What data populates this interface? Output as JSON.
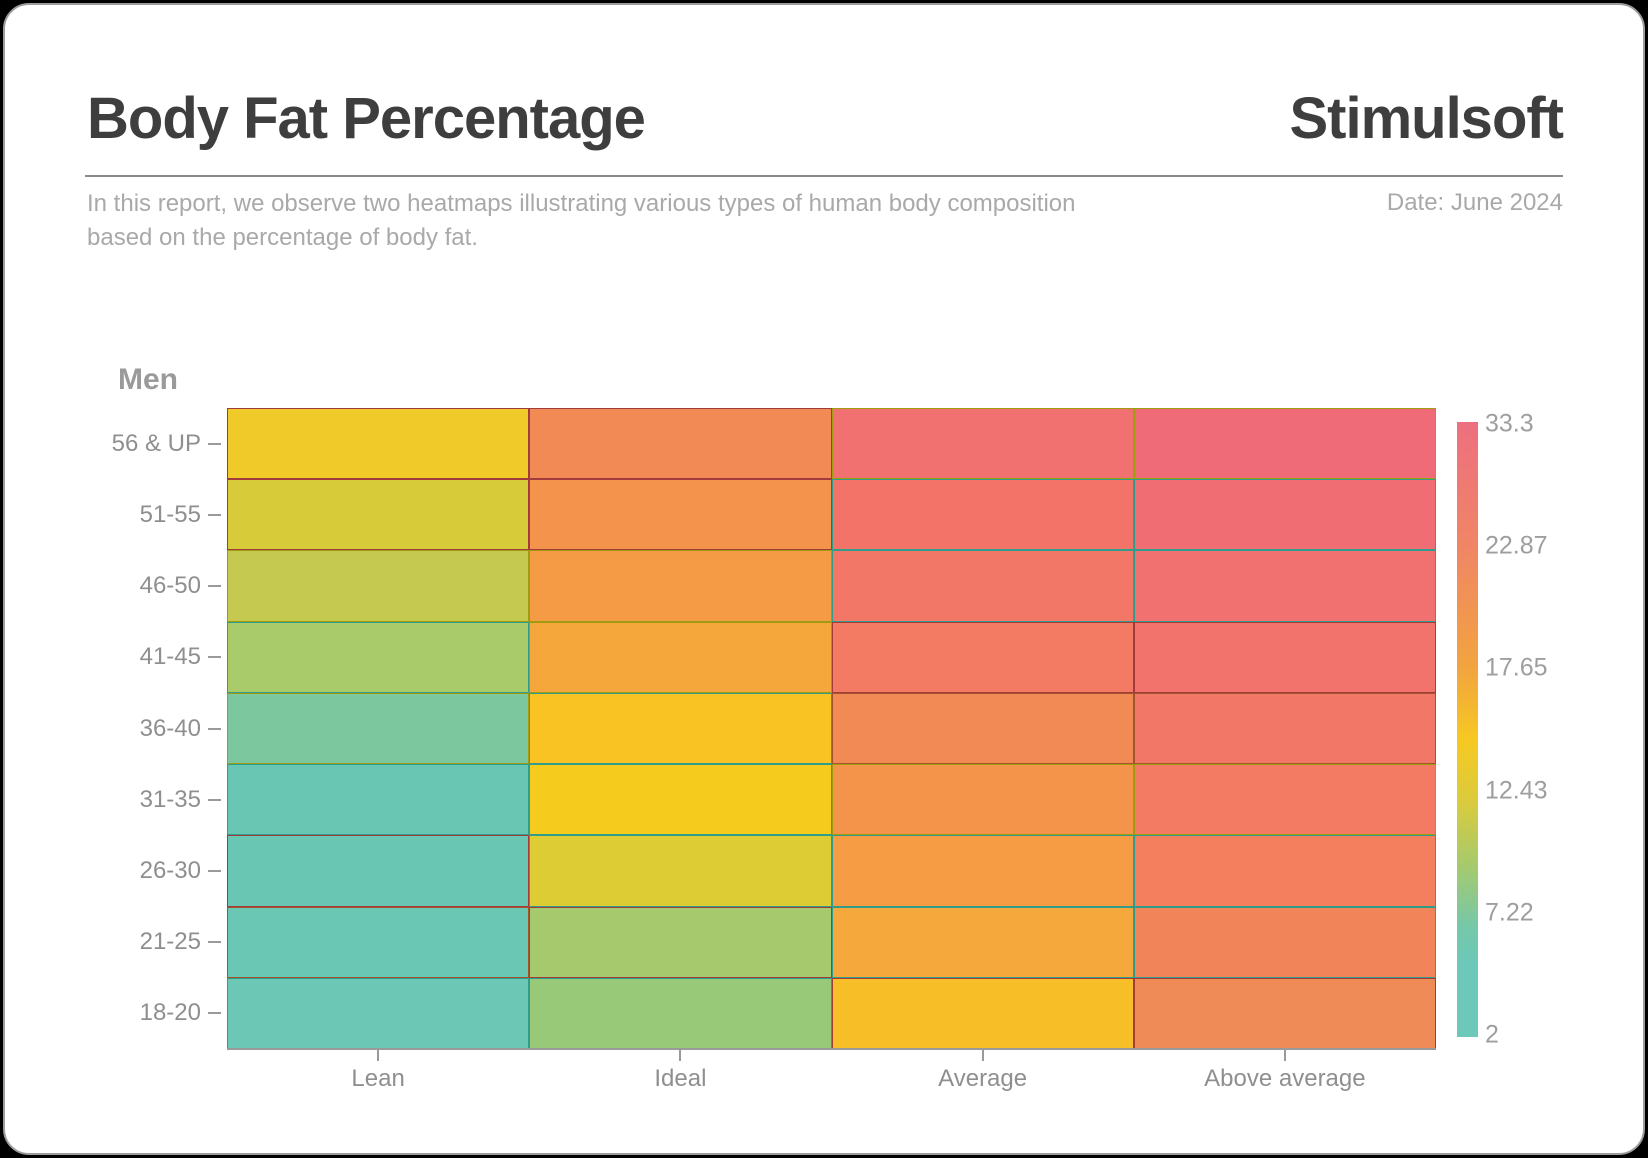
{
  "window": {
    "frame_color": "#000000",
    "card_background": "#ffffff",
    "card_border_color": "#9c9c9c"
  },
  "header": {
    "title": "Body Fat Percentage",
    "brand": "Stimulsoft",
    "subtitle_line1": "In this report, we observe two heatmaps illustrating various types of human body composition",
    "subtitle_line2": "based on the percentage of body fat.",
    "date": "Date: June 2024"
  },
  "chart_data": {
    "type": "heatmap",
    "title": "Men",
    "xlabel": "",
    "ylabel": "",
    "x_categories": [
      "Lean",
      "Ideal",
      "Average",
      "Above average"
    ],
    "rows_top_to_bottom": [
      {
        "label": "56 & UP",
        "values": [
          17.5,
          23.0,
          28.0,
          31.0
        ],
        "colors": [
          "#F0CA28",
          "#F28A56",
          "#F0716F",
          "#F06B78"
        ],
        "border_colors": [
          "#A23C3C",
          "#A23C3C",
          "#A09B0F",
          "#A09B0F"
        ]
      },
      {
        "label": "51-55",
        "values": [
          15.0,
          21.5,
          27.5,
          30.0
        ],
        "colors": [
          "#D7CB39",
          "#F4944C",
          "#F37369",
          "#F16D74"
        ],
        "border_colors": [
          "#A23C3C",
          "#A23C3C",
          "#2F9C8C",
          "#2F9C8C"
        ]
      },
      {
        "label": "46-50",
        "values": [
          14.0,
          20.5,
          26.5,
          28.5
        ],
        "colors": [
          "#C5C94F",
          "#F59B45",
          "#F37767",
          "#F17070"
        ],
        "border_colors": [
          "#A09B0F",
          "#A09B0F",
          "#2F9C8C",
          "#2F9C8C"
        ]
      },
      {
        "label": "41-45",
        "values": [
          13.0,
          19.5,
          25.5,
          27.5
        ],
        "colors": [
          "#A9CB69",
          "#F5A73C",
          "#F37B64",
          "#F2736C"
        ],
        "border_colors": [
          "#2F9C8C",
          "#A09B0F",
          "#A23C3C",
          "#A23C3C"
        ]
      },
      {
        "label": "36-40",
        "values": [
          8.5,
          18.0,
          23.0,
          26.5
        ],
        "colors": [
          "#7CC79D",
          "#F9C324",
          "#F28A55",
          "#F37767"
        ],
        "border_colors": [
          "#A09B0F",
          "#2F9C8C",
          "#A2552B",
          "#A2552B"
        ]
      },
      {
        "label": "31-35",
        "values": [
          7.0,
          16.5,
          21.5,
          25.5
        ],
        "colors": [
          "#69C6B3",
          "#F5CB1E",
          "#F4944B",
          "#F37B63"
        ],
        "border_colors": [
          "#2F9C8C",
          "#2F9C8C",
          "#A09B0F",
          "#A09B0F"
        ]
      },
      {
        "label": "26-30",
        "values": [
          6.5,
          15.5,
          20.5,
          25.0
        ],
        "colors": [
          "#69C6B3",
          "#DECC35",
          "#F59C44",
          "#F37F5F"
        ],
        "border_colors": [
          "#A23C3C",
          "#2F9C8C",
          "#2F9C8C",
          "#2F9C8C"
        ]
      },
      {
        "label": "21-25",
        "values": [
          6.0,
          13.0,
          19.5,
          24.5
        ],
        "colors": [
          "#6AC7B4",
          "#A5C96C",
          "#F5A83B",
          "#F28459"
        ],
        "border_colors": [
          "#A2552B",
          "#A23C3C",
          "#2F9C8C",
          "#2F9C8C"
        ]
      },
      {
        "label": "18-20",
        "values": [
          5.5,
          12.4,
          18.0,
          23.0
        ],
        "colors": [
          "#6CC8B4",
          "#98C979",
          "#F7BE27",
          "#EE8B56"
        ],
        "border_colors": [
          "#2F9C8C",
          "#2F9C8C",
          "#A23C3C",
          "#A23C3C"
        ]
      }
    ],
    "legend": {
      "position": "right",
      "tick_labels_top_to_bottom": [
        "33.3",
        "22.87",
        "17.65",
        "12.43",
        "7.22",
        "2"
      ],
      "min": 2,
      "max": 33.3,
      "gradient_top_to_bottom": [
        "#ED6F7F",
        "#F08566",
        "#F2A43F",
        "#F6C922",
        "#D9CB3E",
        "#A6CA6C",
        "#76C8A9",
        "#6CC8B8"
      ]
    },
    "grid": "off",
    "colors": {
      "axis_text": "#8f8f8f",
      "tick": "#9a9a9a",
      "chart_title_text": "#9a9a9a",
      "title_text": "#3e3e3e",
      "subtitle_text": "#a9a9a9"
    }
  }
}
